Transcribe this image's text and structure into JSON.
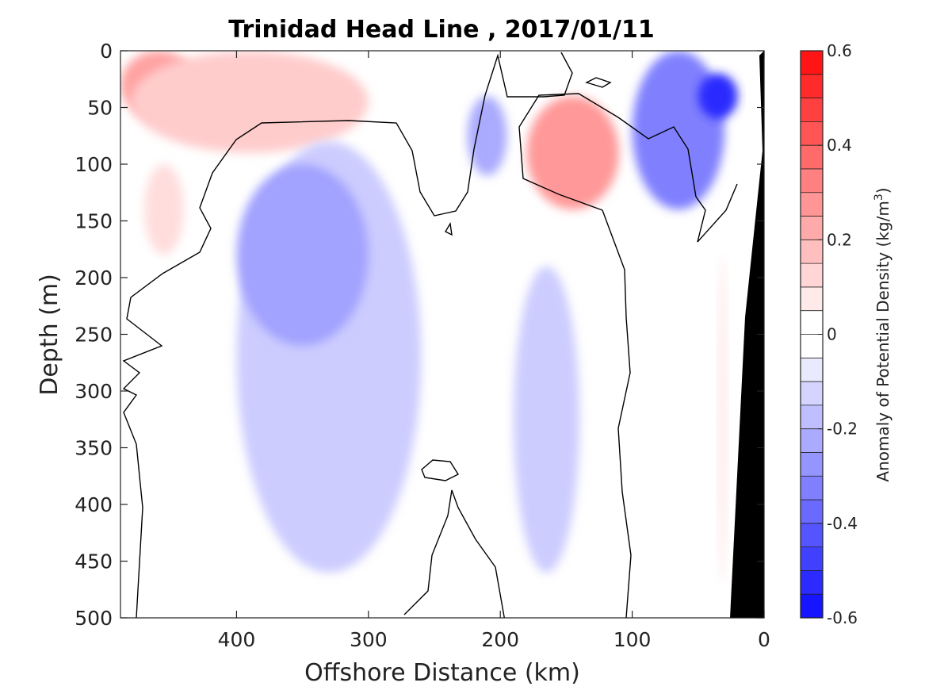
{
  "chart_data": {
    "type": "heatmap",
    "title": "Trinidad Head Line , 2017/01/11",
    "xlabel": "Offshore Distance (km)",
    "ylabel": "Depth (m)",
    "xlim": [
      488,
      0
    ],
    "ylim": [
      0,
      500
    ],
    "x_ticks": [
      400,
      300,
      200,
      100,
      0
    ],
    "y_ticks": [
      0,
      50,
      100,
      150,
      200,
      250,
      300,
      350,
      400,
      450,
      500
    ],
    "colorbar": {
      "label": "Anomaly of Potential Density (kg/m",
      "label_sup": "3",
      "label_suffix": ")",
      "range": [
        -0.6,
        0.6
      ],
      "ticks": [
        "0.6",
        "0.4",
        "0.2",
        "0",
        "-0.2",
        "-0.4",
        "-0.6"
      ],
      "tick_values": [
        0.6,
        0.4,
        0.2,
        0,
        -0.2,
        -0.4,
        -0.6
      ],
      "levels": 24,
      "neg_color": "#0000ff",
      "pos_color": "#ff0000"
    },
    "zero_contour_color": "#000000",
    "bathymetry_color": "#000000",
    "features": [
      {
        "kind": "positive",
        "x": [
          488,
          430
        ],
        "depth": [
          0,
          60
        ],
        "value": 0.22
      },
      {
        "kind": "positive",
        "x": [
          480,
          300
        ],
        "depth": [
          0,
          90
        ],
        "value": 0.12
      },
      {
        "kind": "positive",
        "x": [
          470,
          440
        ],
        "depth": [
          100,
          180
        ],
        "value": 0.08
      },
      {
        "kind": "negative",
        "x": [
          400,
          260
        ],
        "depth": [
          80,
          460
        ],
        "value": -0.12
      },
      {
        "kind": "negative",
        "x": [
          400,
          300
        ],
        "depth": [
          100,
          260
        ],
        "value": -0.22
      },
      {
        "kind": "negative",
        "x": [
          225,
          195
        ],
        "depth": [
          40,
          110
        ],
        "value": -0.2
      },
      {
        "kind": "positive",
        "x": [
          180,
          110
        ],
        "depth": [
          40,
          140
        ],
        "value": 0.24
      },
      {
        "kind": "negative",
        "x": [
          190,
          140
        ],
        "depth": [
          190,
          460
        ],
        "value": -0.12
      },
      {
        "kind": "negative",
        "x": [
          100,
          30
        ],
        "depth": [
          0,
          140
        ],
        "value": -0.3
      },
      {
        "kind": "negative",
        "x": [
          50,
          20
        ],
        "depth": [
          20,
          60
        ],
        "value": -0.5
      },
      {
        "kind": "positive",
        "x": [
          35,
          28
        ],
        "depth": [
          180,
          470
        ],
        "value": 0.05
      }
    ]
  }
}
